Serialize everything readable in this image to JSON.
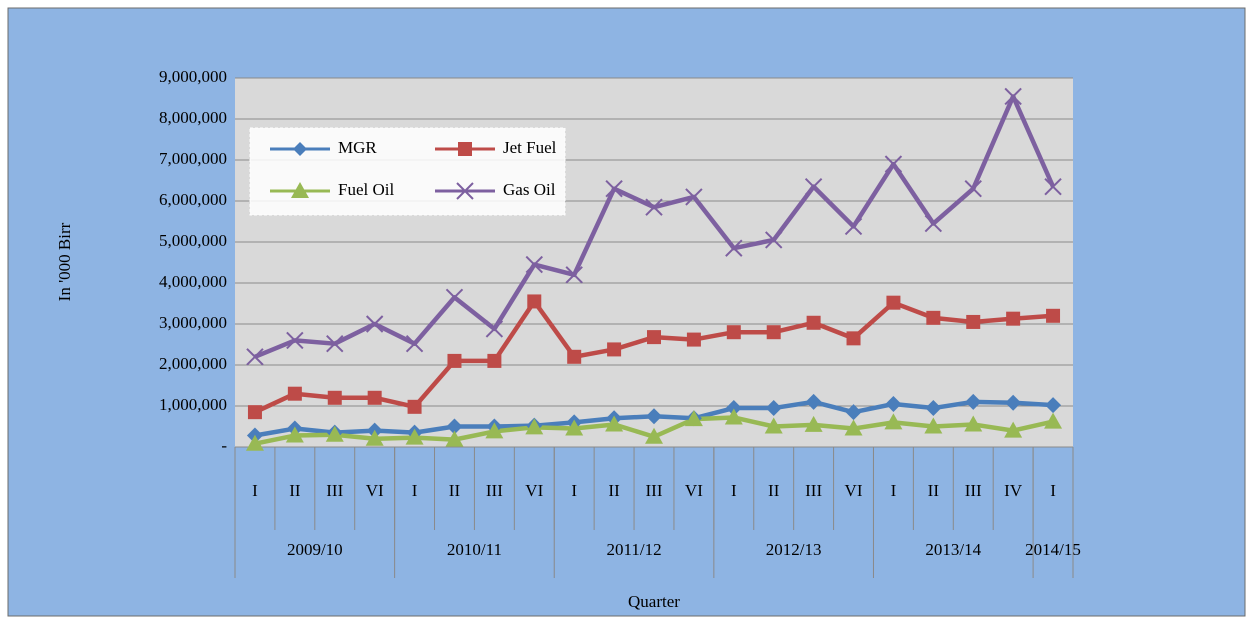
{
  "chart_data": {
    "type": "line",
    "y_axis_label": "In '000 Birr",
    "x_axis_label": "Quarter",
    "categories": [
      "I",
      "II",
      "III",
      "VI",
      "I",
      "II",
      "III",
      "VI",
      "I",
      "II",
      "III",
      "VI",
      "I",
      "II",
      "III",
      "VI",
      "I",
      "II",
      "III",
      "IV",
      "I"
    ],
    "category_groups": [
      {
        "label": "2009/10",
        "count": 4
      },
      {
        "label": "2010/11",
        "count": 4
      },
      {
        "label": "2011/12",
        "count": 4
      },
      {
        "label": "2012/13",
        "count": 4
      },
      {
        "label": "2013/14",
        "count": 4
      },
      {
        "label": "2014/15",
        "count": 1
      }
    ],
    "ylim": [
      0,
      9000000
    ],
    "yticks": [
      {
        "value": 0,
        "label": "-"
      },
      {
        "value": 1000000,
        "label": "1,000,000"
      },
      {
        "value": 2000000,
        "label": "2,000,000"
      },
      {
        "value": 3000000,
        "label": "3,000,000"
      },
      {
        "value": 4000000,
        "label": "4,000,000"
      },
      {
        "value": 5000000,
        "label": "5,000,000"
      },
      {
        "value": 6000000,
        "label": "6,000,000"
      },
      {
        "value": 7000000,
        "label": "7,000,000"
      },
      {
        "value": 8000000,
        "label": "8,000,000"
      },
      {
        "value": 9000000,
        "label": "9,000,000"
      }
    ],
    "grid": true,
    "legend": "upper-left",
    "series": [
      {
        "name": "MGR",
        "color": "#4a7ebb",
        "marker": "diamond",
        "values": [
          280000,
          450000,
          350000,
          400000,
          350000,
          500000,
          500000,
          520000,
          600000,
          700000,
          750000,
          700000,
          950000,
          950000,
          1100000,
          850000,
          1050000,
          950000,
          1100000,
          1080000,
          1020000
        ]
      },
      {
        "name": "Jet Fuel",
        "color": "#be4b48",
        "marker": "square",
        "values": [
          850000,
          1300000,
          1200000,
          1200000,
          980000,
          2100000,
          2100000,
          3550000,
          2200000,
          2380000,
          2680000,
          2620000,
          2800000,
          2800000,
          3030000,
          2650000,
          3520000,
          3150000,
          3050000,
          3130000,
          3200000
        ]
      },
      {
        "name": "Fuel Oil",
        "color": "#98b954",
        "marker": "triangle",
        "values": [
          80000,
          280000,
          300000,
          200000,
          230000,
          180000,
          380000,
          480000,
          450000,
          550000,
          250000,
          680000,
          720000,
          500000,
          540000,
          450000,
          600000,
          500000,
          550000,
          400000,
          620000
        ]
      },
      {
        "name": "Gas Oil",
        "color": "#7d60a0",
        "marker": "x",
        "values": [
          2200000,
          2600000,
          2520000,
          3000000,
          2520000,
          3650000,
          2880000,
          4450000,
          4200000,
          6300000,
          5850000,
          6100000,
          4850000,
          5050000,
          6350000,
          5380000,
          6900000,
          5450000,
          6300000,
          8550000,
          6350000
        ]
      }
    ]
  }
}
